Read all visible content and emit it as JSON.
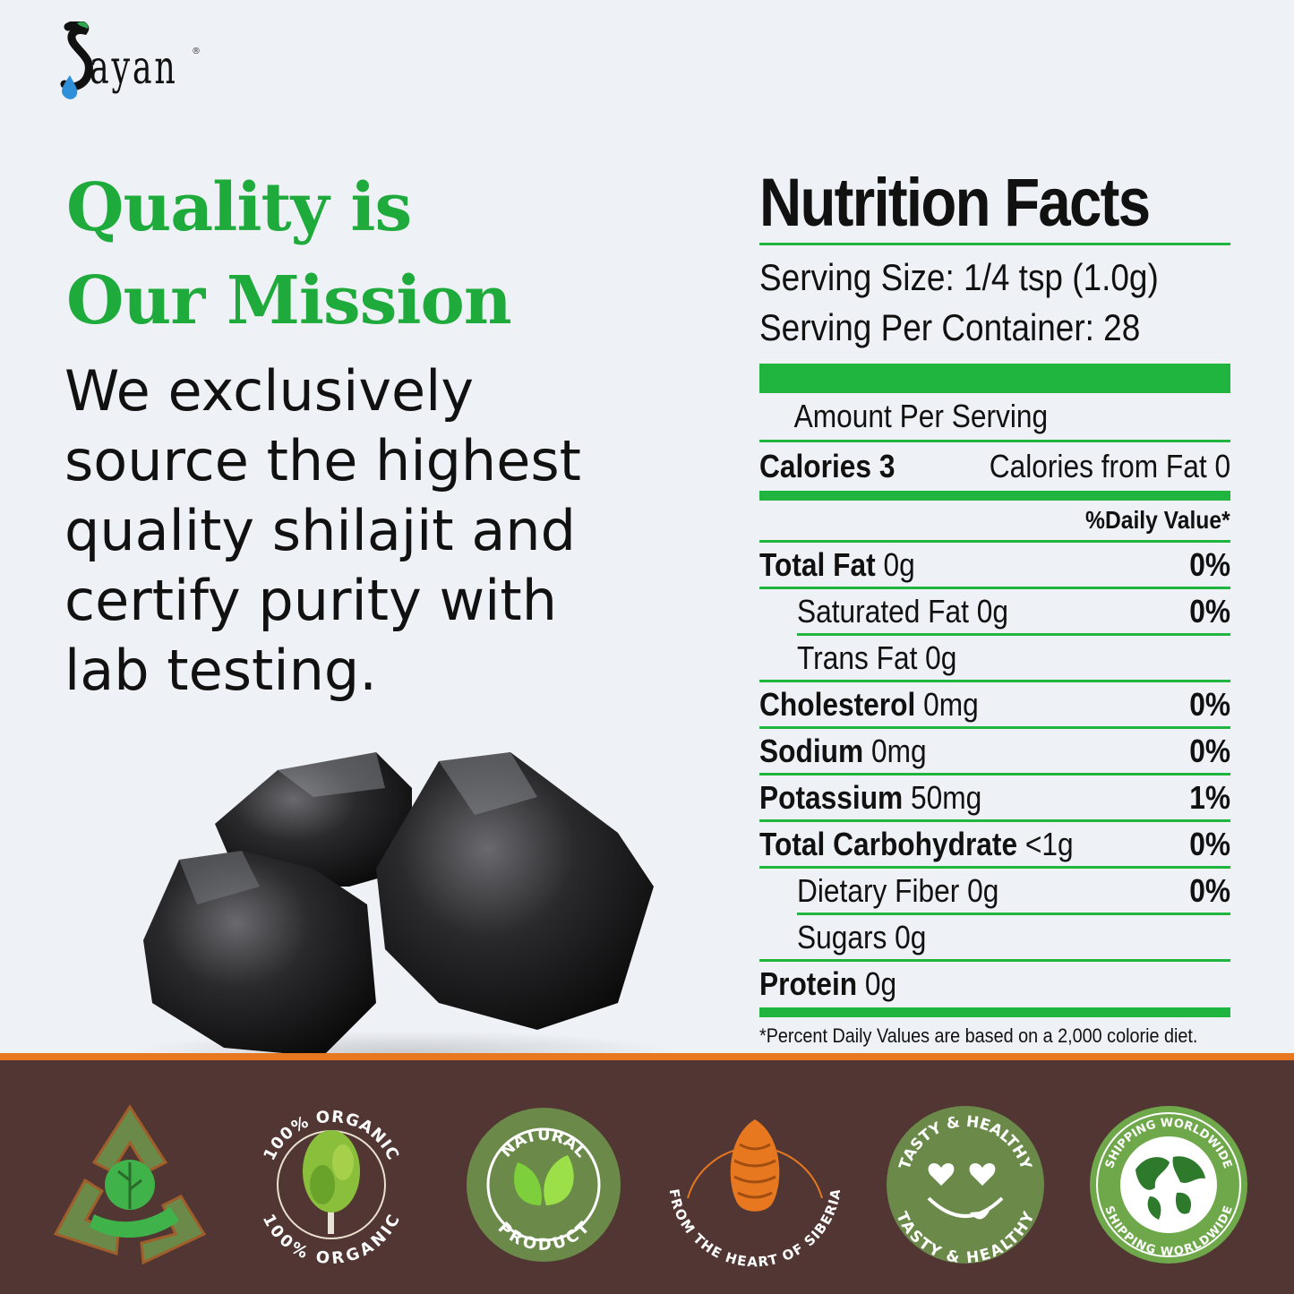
{
  "brand": {
    "name": "ayan",
    "initial": "S",
    "mark": "®"
  },
  "headline": "Quality is Our Mission",
  "description": "We exclusively source the highest quality shilajit and certify purity with lab testing.",
  "nutrition": {
    "title": "Nutrition Facts",
    "serving_size": "Serving Size: 1/4 tsp (1.0g)",
    "servings_per_container": "Serving Per Container: 28",
    "amount_per_serving": "Amount Per Serving",
    "calories": "Calories 3",
    "calories_from_fat": "Calories from Fat 0",
    "daily_value_header": "%Daily Value*",
    "rows": [
      {
        "name": "Total Fat",
        "amount": " 0g",
        "dv": "0%"
      },
      {
        "name": "Saturated Fat 0g",
        "amount": "",
        "dv": "0%"
      },
      {
        "name": "Trans Fat 0g",
        "amount": "",
        "dv": ""
      },
      {
        "name": "Cholesterol",
        "amount": " 0mg",
        "dv": "0%"
      },
      {
        "name": "Sodium",
        "amount": " 0mg",
        "dv": "0%"
      },
      {
        "name": "Potassium",
        "amount": " 50mg",
        "dv": "1%"
      },
      {
        "name": "Total Carbohydrate",
        "amount": " <1g",
        "dv": "0%"
      },
      {
        "name": "Dietary Fiber 0g",
        "amount": "",
        "dv": "0%"
      },
      {
        "name": "Sugars 0g",
        "amount": "",
        "dv": ""
      },
      {
        "name": "Protein",
        "amount": " 0g",
        "dv": ""
      }
    ],
    "footnote": "*Percent Daily Values are based on a 2,000 colorie diet."
  },
  "badges": {
    "organic_top": "100% ORGANIC",
    "organic_bottom": "100% ORGANIC",
    "natural_top": "NATURAL",
    "natural_bottom": "PRODUCT",
    "siberia": "FROM THE HEART OF SIBERIA",
    "tasty_top": "TASTY & HEALTHY",
    "tasty_bottom": "TASTY & HEALTHY",
    "shipping_top": "SHIPPING WORLDWIDE",
    "shipping_bottom": "SHIPPING WORLDWIDE"
  },
  "colors": {
    "accent_green": "#1fb53f",
    "band_brown": "#523634",
    "band_orange": "#e8781f",
    "badge_green": "#6b8a4a"
  }
}
